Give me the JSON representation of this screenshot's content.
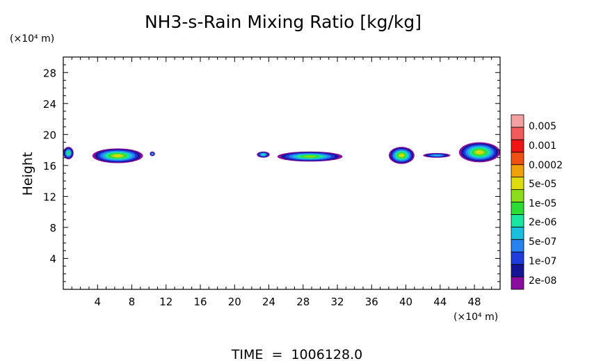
{
  "chart_data": {
    "type": "heatmap",
    "title": "NH3-s-Rain Mixing Ratio [kg/kg]",
    "ylabel": "Height",
    "y_unit": "(×10⁴ m)",
    "x_unit": "(×10⁴ m)",
    "footer": "TIME  =  1006128.0",
    "xlim": [
      0,
      51
    ],
    "ylim": [
      0,
      30
    ],
    "x_ticks": [
      4,
      8,
      12,
      16,
      20,
      24,
      28,
      32,
      36,
      40,
      44,
      48
    ],
    "x_tick_labels": [
      "4",
      "8",
      "12",
      "16",
      "20",
      "24",
      "28",
      "32",
      "36",
      "40",
      "44",
      "48"
    ],
    "y_ticks": [
      4,
      8,
      12,
      16,
      20,
      24,
      28
    ],
    "y_tick_labels": [
      "4",
      "8",
      "12",
      "16",
      "20",
      "24",
      "28"
    ],
    "colorbar": {
      "colors": [
        "#8b0da0",
        "#141496",
        "#1e3cdc",
        "#2882f0",
        "#19bedc",
        "#19e6a0",
        "#2ddc32",
        "#8cdc1e",
        "#dcdc0f",
        "#f0a00a",
        "#f05014",
        "#f01414",
        "#f05a5a",
        "#f5a0a0"
      ],
      "labels": [
        "2e-08",
        "1e-07",
        "5e-07",
        "2e-06",
        "1e-05",
        "5e-05",
        "0.0002",
        "0.001",
        "0.005"
      ]
    },
    "regions": [
      {
        "x": [
          0.0,
          1.2
        ],
        "y": [
          16.8,
          18.4
        ],
        "max_level": 6
      },
      {
        "x": [
          3.4,
          9.3
        ],
        "y": [
          16.3,
          18.2
        ],
        "max_level": 8
      },
      {
        "x": [
          10.1,
          10.7
        ],
        "y": [
          17.2,
          17.8
        ],
        "max_level": 4
      },
      {
        "x": [
          22.6,
          24.1
        ],
        "y": [
          17.0,
          17.8
        ],
        "max_level": 5
      },
      {
        "x": [
          25.0,
          32.6
        ],
        "y": [
          16.5,
          17.8
        ],
        "max_level": 7
      },
      {
        "x": [
          38.0,
          41.0
        ],
        "y": [
          16.2,
          18.4
        ],
        "max_level": 8
      },
      {
        "x": [
          42.0,
          45.2
        ],
        "y": [
          17.0,
          17.6
        ],
        "max_level": 4
      },
      {
        "x": [
          46.2,
          51.0
        ],
        "y": [
          16.4,
          19.0
        ],
        "max_level": 8
      }
    ]
  }
}
